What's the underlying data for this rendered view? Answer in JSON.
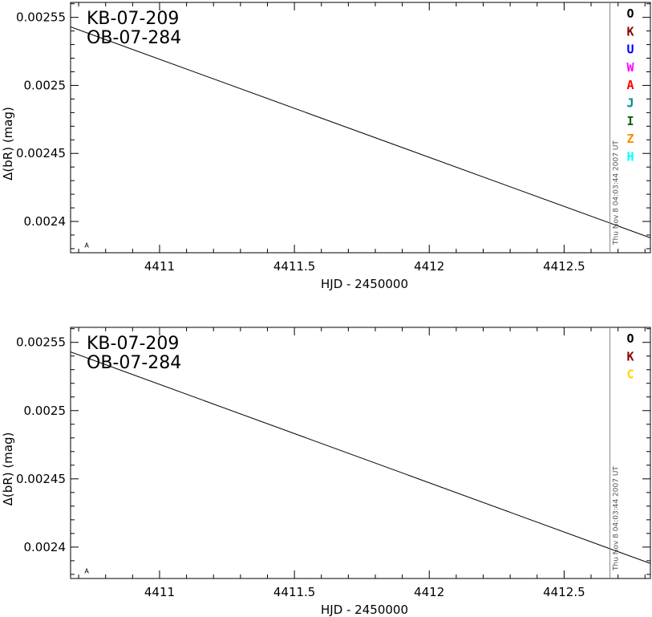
{
  "chart_data": [
    {
      "type": "line",
      "event_labels": [
        "KB-07-209",
        "OB-07-284"
      ],
      "xlabel": "HJD - 2450000",
      "ylabel": "Δ(bR) (mag)",
      "xlim": [
        4410.67,
        4412.82
      ],
      "ylim": [
        0.002377,
        0.002561
      ],
      "x_ticks": [
        4411,
        4411.5,
        4412,
        4412.5
      ],
      "x_tick_labels": [
        "4411",
        "4411.5",
        "4412",
        "4412.5"
      ],
      "y_ticks": [
        0.0024,
        0.00245,
        0.0025,
        0.00255
      ],
      "y_tick_labels": [
        "0.0024",
        "0.00245",
        "0.0025",
        "0.00255"
      ],
      "series": [
        {
          "x": [
            4410.67,
            4412.82
          ],
          "y": [
            0.002543,
            0.002388
          ],
          "color": "#000000"
        }
      ],
      "current_time_x": 4412.67,
      "timestamp": "Thu Nov  8 04:03:44 2007 UT",
      "point_marker": {
        "x": 4410.73,
        "y": 0.002388,
        "label": "A"
      },
      "legend": [
        {
          "label": "O",
          "color": "#000000"
        },
        {
          "label": "K",
          "color": "#8b0000"
        },
        {
          "label": "U",
          "color": "#0000ff"
        },
        {
          "label": "W",
          "color": "#ff00ff"
        },
        {
          "label": "A",
          "color": "#ff0000"
        },
        {
          "label": "J",
          "color": "#008b8b"
        },
        {
          "label": "I",
          "color": "#006400"
        },
        {
          "label": "Z",
          "color": "#ff8c00"
        },
        {
          "label": "H",
          "color": "#00ffff"
        }
      ]
    },
    {
      "type": "line",
      "event_labels": [
        "KB-07-209",
        "OB-07-284"
      ],
      "xlabel": "HJD - 2450000",
      "ylabel": "Δ(bR) (mag)",
      "xlim": [
        4410.67,
        4412.82
      ],
      "ylim": [
        0.002377,
        0.002561
      ],
      "x_ticks": [
        4411,
        4411.5,
        4412,
        4412.5
      ],
      "x_tick_labels": [
        "4411",
        "4411.5",
        "4412",
        "4412.5"
      ],
      "y_ticks": [
        0.0024,
        0.00245,
        0.0025,
        0.00255
      ],
      "y_tick_labels": [
        "0.0024",
        "0.00245",
        "0.0025",
        "0.00255"
      ],
      "series": [
        {
          "x": [
            4410.67,
            4412.82
          ],
          "y": [
            0.002543,
            0.002388
          ],
          "color": "#000000"
        }
      ],
      "current_time_x": 4412.67,
      "timestamp": "Thu Nov  8 04:03:44 2007 UT",
      "point_marker": {
        "x": 4410.73,
        "y": 0.002388,
        "label": "A"
      },
      "legend": [
        {
          "label": "O",
          "color": "#000000"
        },
        {
          "label": "K",
          "color": "#8b0000"
        },
        {
          "label": "C",
          "color": "#ffd700"
        }
      ]
    }
  ]
}
